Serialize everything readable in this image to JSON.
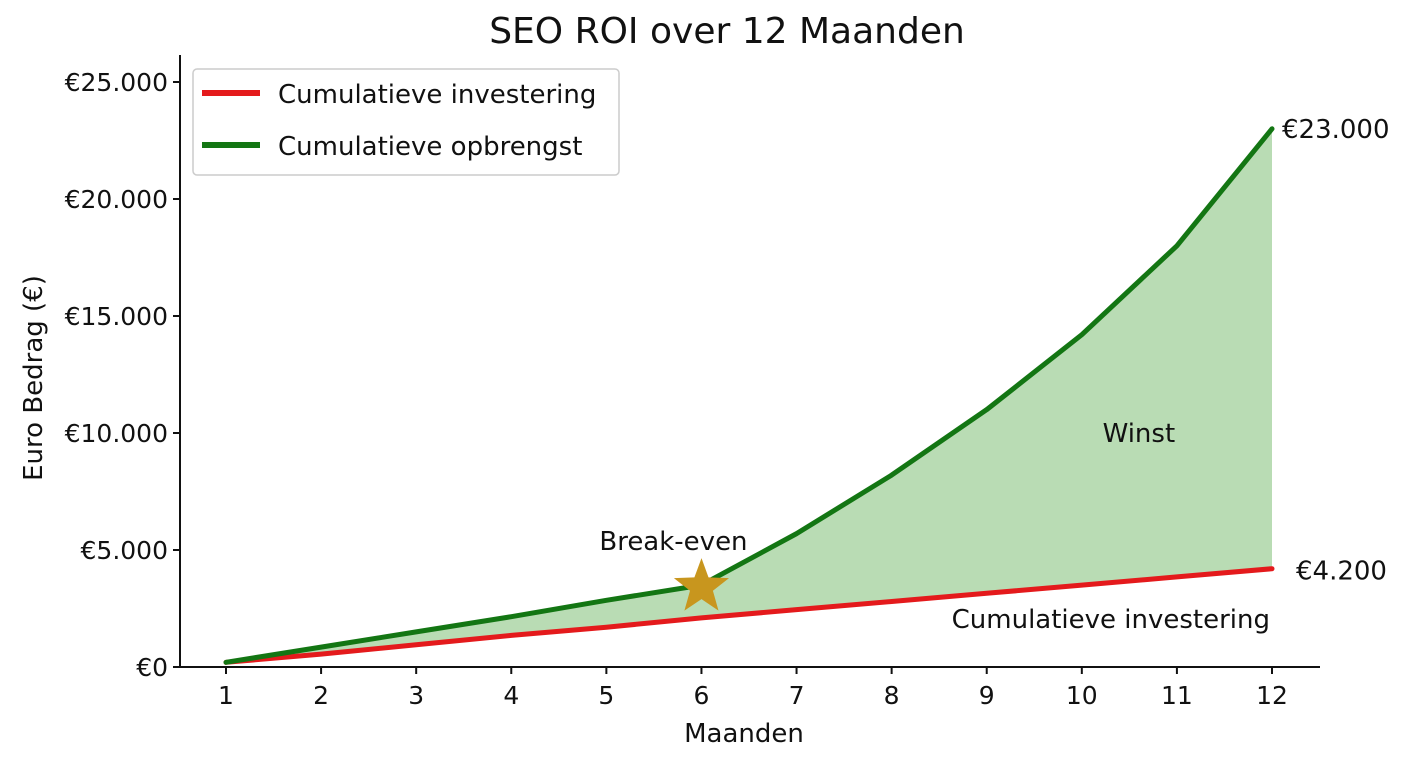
{
  "chart_data": {
    "type": "line",
    "title": "SEO ROI over 12 Maanden",
    "xlabel": "Maanden",
    "ylabel": "Euro Bedrag (€)",
    "x": [
      1,
      2,
      3,
      4,
      5,
      6,
      7,
      8,
      9,
      10,
      11,
      12
    ],
    "x_tick_labels": [
      "1",
      "2",
      "3",
      "4",
      "5",
      "6",
      "7",
      "8",
      "9",
      "10",
      "11",
      "12"
    ],
    "xlim": [
      0.5,
      13
    ],
    "ylim": [
      0,
      25000
    ],
    "y_ticks": [
      0,
      5000,
      10000,
      15000,
      20000,
      25000
    ],
    "y_tick_labels": [
      "€0",
      "€5.000",
      "€10.000",
      "€15.000",
      "€20.000",
      "€25.000"
    ],
    "series": [
      {
        "name": "Cumulatieve investering",
        "color": "#e41a1c",
        "values": [
          200,
          550,
          950,
          1350,
          1700,
          2100,
          2450,
          2800,
          3150,
          3500,
          3850,
          4200
        ]
      },
      {
        "name": "Cumulatieve opbrengst",
        "color": "#137613",
        "values": [
          200,
          850,
          1500,
          2150,
          2850,
          3500,
          5700,
          8200,
          11000,
          14200,
          18000,
          23000
        ]
      }
    ],
    "fill_between": {
      "color": "#b9dcb4"
    },
    "legend_position": "top-left",
    "grid": false,
    "annotations": {
      "break_even_label": "Break-even",
      "break_even_x": 6,
      "break_even_y": 3500,
      "break_even_color": "#c8961e",
      "profit_label": "Winst",
      "profit_x": 10.6,
      "profit_y": 10000,
      "investment_label": "Cumulatieve investering",
      "end_revenue_label": "€23.000",
      "end_investment_label": "€4.200"
    }
  }
}
